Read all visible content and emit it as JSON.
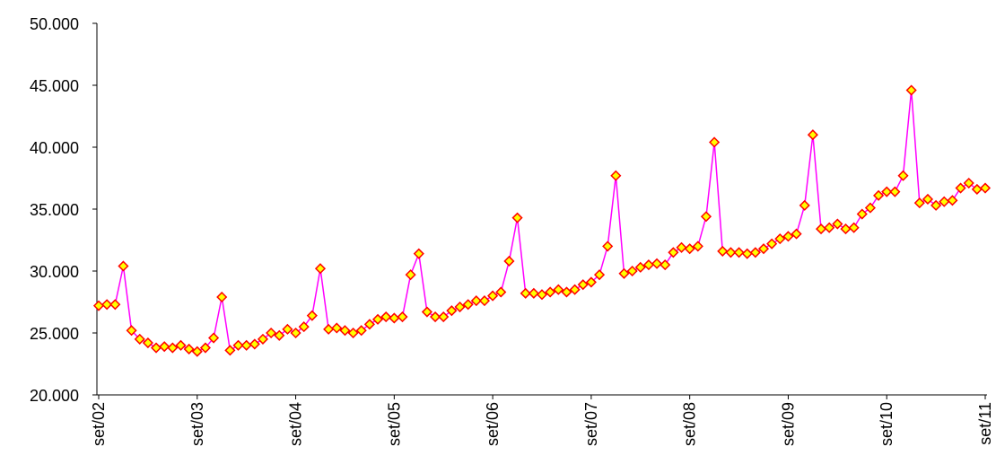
{
  "chart_data": {
    "type": "line",
    "categories": [
      "set/02",
      null,
      null,
      null,
      null,
      null,
      null,
      null,
      null,
      null,
      null,
      null,
      "set/03",
      null,
      null,
      null,
      null,
      null,
      null,
      null,
      null,
      null,
      null,
      null,
      "set/04",
      null,
      null,
      null,
      null,
      null,
      null,
      null,
      null,
      null,
      null,
      null,
      "set/05",
      null,
      null,
      null,
      null,
      null,
      null,
      null,
      null,
      null,
      null,
      null,
      "set/06",
      null,
      null,
      null,
      null,
      null,
      null,
      null,
      null,
      null,
      null,
      null,
      "set/07",
      null,
      null,
      null,
      null,
      null,
      null,
      null,
      null,
      null,
      null,
      null,
      "set/08",
      null,
      null,
      null,
      null,
      null,
      null,
      null,
      null,
      null,
      null,
      null,
      "set/09",
      null,
      null,
      null,
      null,
      null,
      null,
      null,
      null,
      null,
      null,
      null,
      "set/10",
      null,
      null,
      null,
      null,
      null,
      null,
      null,
      null,
      null,
      null,
      null,
      "set/11"
    ],
    "series": [
      {
        "color": "#ff00ff",
        "marker_fill": "#ffff00",
        "marker_stroke": "#ff0000",
        "values": [
          27200,
          27300,
          27300,
          30400,
          25200,
          24500,
          24200,
          23800,
          23900,
          23800,
          24000,
          23700,
          23500,
          23800,
          24600,
          27900,
          23600,
          24000,
          24000,
          24100,
          24500,
          25000,
          24800,
          25300,
          25000,
          25500,
          26400,
          30200,
          25300,
          25400,
          25200,
          25000,
          25200,
          25700,
          26100,
          26300,
          26200,
          26300,
          29700,
          31400,
          26700,
          26300,
          26300,
          26800,
          27100,
          27300,
          27600,
          27600,
          28000,
          28300,
          30800,
          34300,
          28200,
          28200,
          28100,
          28300,
          28500,
          28300,
          28500,
          28900,
          29100,
          29700,
          32000,
          37700,
          29800,
          30000,
          30300,
          30500,
          30600,
          30500,
          31500,
          31900,
          31800,
          32000,
          34400,
          40400,
          31600,
          31500,
          31500,
          31400,
          31500,
          31800,
          32200,
          32600,
          32800,
          33000,
          35300,
          41000,
          33400,
          33500,
          33800,
          33400,
          33500,
          34600,
          35100,
          36100,
          36400,
          36400,
          37700,
          44600,
          35500,
          35800,
          35300,
          35600,
          35700,
          36700,
          37100,
          36600,
          36700
        ]
      }
    ],
    "ylim": [
      20000,
      50000
    ],
    "yticks": [
      {
        "value": 20000,
        "label": "20.000"
      },
      {
        "value": 25000,
        "label": "25.000"
      },
      {
        "value": 30000,
        "label": "30.000"
      },
      {
        "value": 35000,
        "label": "35.000"
      },
      {
        "value": 40000,
        "label": "40.000"
      },
      {
        "value": 45000,
        "label": "45.000"
      },
      {
        "value": 50000,
        "label": "50.000"
      }
    ],
    "grid": false
  }
}
